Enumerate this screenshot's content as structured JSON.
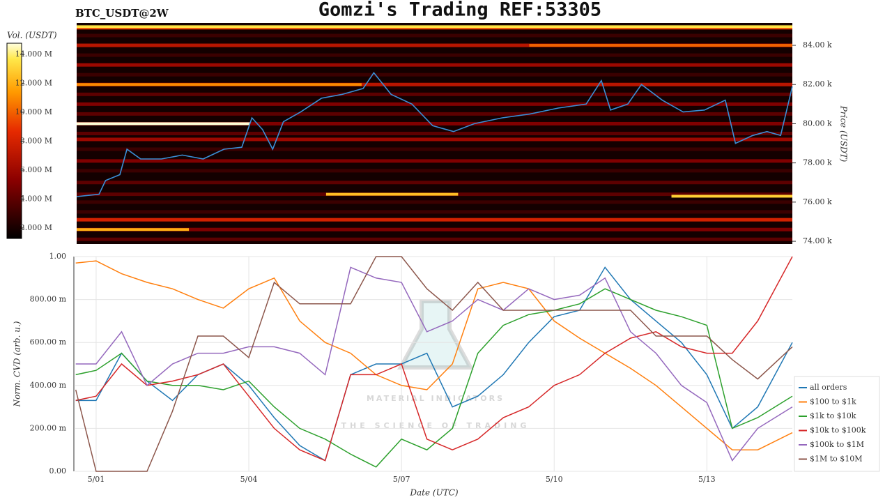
{
  "title": "Gomzi's Trading REF:53305",
  "watermark": {
    "title": "MATERIAL INDICATORS",
    "subtitle": "THE SCIENCE OF TRADING"
  },
  "chart_data": [
    {
      "type": "heatmap",
      "subtitle": "BTC_USDT@2W",
      "colorbar": {
        "label": "Vol. (USDT)",
        "lim": [
          1280000,
          14770000
        ],
        "ticks": [
          {
            "value": 2000000,
            "label": "2.000 M"
          },
          {
            "value": 4000000,
            "label": "4.000 M"
          },
          {
            "value": 6000000,
            "label": "6.000 M"
          },
          {
            "value": 8000000,
            "label": "8.000 M"
          },
          {
            "value": 10000000,
            "label": "10.000 M"
          },
          {
            "value": 12000000,
            "label": "12.000 M"
          },
          {
            "value": 14000000,
            "label": "14.000 M"
          }
        ]
      },
      "y_label": "Price (USDT)",
      "xlim": [
        0.59,
        14.68
      ],
      "ylim": [
        73860,
        85140
      ],
      "yticks": [
        {
          "value": 74000,
          "label": "74.00 k"
        },
        {
          "value": 76000,
          "label": "76.00 k"
        },
        {
          "value": 78000,
          "label": "78.00 k"
        },
        {
          "value": 80000,
          "label": "80.00 k"
        },
        {
          "value": 82000,
          "label": "82.00 k"
        },
        {
          "value": 84000,
          "label": "84.00 k"
        }
      ],
      "levels": [
        {
          "price": 84900,
          "volume": 9000000
        },
        {
          "price": 84500,
          "volume": 3000000
        },
        {
          "price": 84000,
          "volume": 7000000
        },
        {
          "price": 83500,
          "volume": 3000000
        },
        {
          "price": 83000,
          "volume": 6000000
        },
        {
          "price": 82500,
          "volume": 3000000
        },
        {
          "price": 82000,
          "volume": 7000000
        },
        {
          "price": 81500,
          "volume": 4000000
        },
        {
          "price": 81000,
          "volume": 5000000
        },
        {
          "price": 80500,
          "volume": 4000000
        },
        {
          "price": 80000,
          "volume": 5000000
        },
        {
          "price": 79500,
          "volume": 4000000
        },
        {
          "price": 79200,
          "volume": 6000000
        },
        {
          "price": 78700,
          "volume": 3000000
        },
        {
          "price": 78100,
          "volume": 5000000
        },
        {
          "price": 77600,
          "volume": 3000000
        },
        {
          "price": 77000,
          "volume": 4000000
        },
        {
          "price": 76400,
          "volume": 4000000
        },
        {
          "price": 76000,
          "volume": 3000000
        },
        {
          "price": 75500,
          "volume": 3000000
        },
        {
          "price": 75100,
          "volume": 8000000
        },
        {
          "price": 74600,
          "volume": 5000000
        },
        {
          "price": 74100,
          "volume": 4000000
        }
      ],
      "segments": [
        {
          "x0": 0.59,
          "x1": 14.68,
          "price": 84950,
          "volume": 13500000
        },
        {
          "x0": 9.5,
          "x1": 14.68,
          "price": 84000,
          "volume": 10000000
        },
        {
          "x0": 0.59,
          "x1": 6.2,
          "price": 82000,
          "volume": 11000000
        },
        {
          "x0": 0.59,
          "x1": 4.0,
          "price": 80000,
          "volume": 14700000
        },
        {
          "x0": 5.5,
          "x1": 8.1,
          "price": 76400,
          "volume": 12500000
        },
        {
          "x0": 12.3,
          "x1": 14.68,
          "price": 76300,
          "volume": 13000000
        },
        {
          "x0": 0.59,
          "x1": 2.8,
          "price": 74600,
          "volume": 12000000
        }
      ],
      "line_color": "#3a8fd6",
      "x": [
        0.59,
        1.03,
        1.16,
        1.44,
        1.58,
        1.85,
        2.26,
        2.67,
        3.08,
        3.49,
        3.84,
        4.04,
        4.25,
        4.45,
        4.66,
        5.0,
        5.41,
        5.82,
        6.23,
        6.44,
        6.78,
        7.19,
        7.6,
        8.01,
        8.42,
        8.97,
        9.52,
        10.07,
        10.62,
        10.92,
        11.1,
        11.44,
        11.71,
        12.12,
        12.53,
        12.95,
        13.36,
        13.56,
        13.9,
        14.18,
        14.45,
        14.68
      ],
      "values": [
        76280,
        76400,
        77100,
        77400,
        78700,
        78200,
        78200,
        78400,
        78200,
        78700,
        78800,
        80300,
        79700,
        78700,
        80100,
        80600,
        81300,
        81500,
        81800,
        82600,
        81500,
        81000,
        79900,
        79600,
        80000,
        80300,
        80500,
        80800,
        81000,
        82200,
        80700,
        81000,
        82000,
        81200,
        80600,
        80700,
        81200,
        79000,
        79400,
        79600,
        79400,
        81900
      ]
    },
    {
      "type": "line",
      "y_label": "Norm. CVD (arb. u.)",
      "x_label": "Date (UTC)",
      "xlim": [
        0.59,
        14.68
      ],
      "ylim": [
        0,
        1
      ],
      "xticks": [
        {
          "value": 1,
          "label": "5/01"
        },
        {
          "value": 4,
          "label": "5/04"
        },
        {
          "value": 7,
          "label": "5/07"
        },
        {
          "value": 10,
          "label": "5/10"
        },
        {
          "value": 13,
          "label": "5/13"
        }
      ],
      "yticks": [
        {
          "value": 0,
          "label": "0.00"
        },
        {
          "value": 0.2,
          "label": "200.00 m"
        },
        {
          "value": 0.4,
          "label": "400.00 m"
        },
        {
          "value": 0.6,
          "label": "600.00 m"
        },
        {
          "value": 0.8,
          "label": "800.00 m"
        },
        {
          "value": 1,
          "label": "1.00"
        }
      ],
      "grid": true,
      "legend": "right",
      "x": [
        0.6,
        1,
        1.5,
        2,
        2.5,
        3,
        3.5,
        4,
        4.5,
        5,
        5.5,
        6,
        6.5,
        7,
        7.5,
        8,
        8.5,
        9,
        9.5,
        10,
        10.5,
        11,
        11.5,
        12,
        12.5,
        13,
        13.5,
        14,
        14.68
      ],
      "series": [
        {
          "name": "all orders",
          "color": "#1f77b4",
          "values": [
            0.33,
            0.33,
            0.55,
            0.42,
            0.33,
            0.45,
            0.5,
            0.4,
            0.25,
            0.12,
            0.05,
            0.45,
            0.5,
            0.5,
            0.55,
            0.3,
            0.35,
            0.45,
            0.6,
            0.72,
            0.75,
            0.95,
            0.8,
            0.7,
            0.6,
            0.45,
            0.2,
            0.3,
            0.6
          ]
        },
        {
          "name": "$100 to $1k",
          "color": "#ff7f0e",
          "values": [
            0.97,
            0.98,
            0.92,
            0.88,
            0.85,
            0.8,
            0.76,
            0.85,
            0.9,
            0.7,
            0.6,
            0.55,
            0.45,
            0.4,
            0.38,
            0.5,
            0.85,
            0.88,
            0.85,
            0.7,
            0.62,
            0.55,
            0.48,
            0.4,
            0.3,
            0.2,
            0.1,
            0.1,
            0.18
          ]
        },
        {
          "name": "$1k to $10k",
          "color": "#2ca02c",
          "values": [
            0.45,
            0.47,
            0.55,
            0.42,
            0.4,
            0.4,
            0.38,
            0.42,
            0.3,
            0.2,
            0.15,
            0.08,
            0.02,
            0.15,
            0.1,
            0.2,
            0.55,
            0.68,
            0.73,
            0.75,
            0.78,
            0.85,
            0.8,
            0.75,
            0.72,
            0.68,
            0.2,
            0.25,
            0.35
          ]
        },
        {
          "name": "$10k to $100k",
          "color": "#d62728",
          "values": [
            0.33,
            0.35,
            0.5,
            0.4,
            0.42,
            0.45,
            0.5,
            0.35,
            0.2,
            0.1,
            0.05,
            0.45,
            0.45,
            0.5,
            0.15,
            0.1,
            0.15,
            0.25,
            0.3,
            0.4,
            0.45,
            0.55,
            0.62,
            0.65,
            0.58,
            0.55,
            0.55,
            0.7,
            1.0
          ]
        },
        {
          "name": "$100k to $1M",
          "color": "#9467bd",
          "values": [
            0.5,
            0.5,
            0.65,
            0.4,
            0.5,
            0.55,
            0.55,
            0.58,
            0.58,
            0.55,
            0.45,
            0.95,
            0.9,
            0.88,
            0.65,
            0.7,
            0.8,
            0.75,
            0.85,
            0.8,
            0.82,
            0.9,
            0.65,
            0.55,
            0.4,
            0.32,
            0.05,
            0.2,
            0.3
          ]
        },
        {
          "name": "$1M to $10M",
          "color": "#8c564b",
          "values": [
            0.38,
            0.0,
            0.0,
            0.0,
            0.28,
            0.63,
            0.63,
            0.53,
            0.88,
            0.78,
            0.78,
            0.78,
            1.0,
            1.0,
            0.85,
            0.75,
            0.88,
            0.75,
            0.75,
            0.75,
            0.75,
            0.75,
            0.75,
            0.63,
            0.63,
            0.63,
            0.52,
            0.43,
            0.58
          ]
        }
      ]
    }
  ]
}
